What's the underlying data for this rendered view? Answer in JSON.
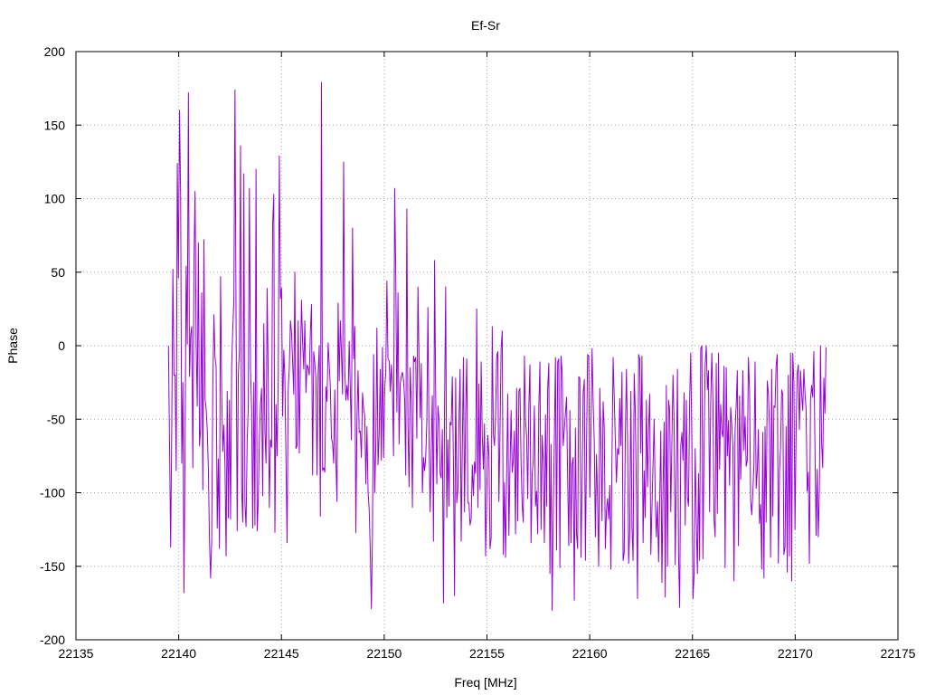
{
  "chart_data": {
    "type": "line",
    "title": "Ef-Sr",
    "xlabel": "Freq [MHz]",
    "ylabel": "Phase",
    "xlim": [
      22135,
      22175
    ],
    "ylim": [
      -200,
      200
    ],
    "x_ticks": [
      22135,
      22140,
      22145,
      22150,
      22155,
      22160,
      22165,
      22170,
      22175
    ],
    "y_ticks": [
      -200,
      -150,
      -100,
      -50,
      0,
      50,
      100,
      150,
      200
    ],
    "grid": true,
    "legend": "none",
    "series": [
      {
        "color": "#9400d3",
        "x_start": 22139.5,
        "x_end": 22171.5,
        "y": [
          0,
          -68,
          -137,
          -55,
          52,
          -20,
          -20,
          -85,
          124,
          46,
          160,
          102,
          -80,
          -25,
          -168,
          -66,
          54,
          1,
          172,
          -21,
          7,
          13,
          -83,
          55,
          105,
          1,
          -41,
          70,
          -68,
          -57,
          36,
          -98,
          72,
          -36,
          -43,
          -57,
          -84,
          -132,
          -158,
          -133,
          -30,
          21,
          -8,
          -14,
          -124,
          -77,
          -138,
          47,
          -31,
          -72,
          -54,
          -82,
          -143,
          -31,
          -117,
          -37,
          -118,
          -14,
          11,
          31,
          174,
          16,
          -126,
          -20,
          -3,
          136,
          -97,
          -120,
          117,
          -108,
          -123,
          -65,
          -42,
          107,
          -16,
          -43,
          -124,
          -25,
          -122,
          120,
          -126,
          -106,
          -64,
          -40,
          -29,
          -102,
          15,
          -58,
          -80,
          39,
          -23,
          -110,
          -64,
          -69,
          83,
          103,
          -127,
          -40,
          -75,
          -25,
          129,
          32,
          39,
          -48,
          -3,
          -21,
          -77,
          -134,
          -30,
          -15,
          17,
          9,
          -11,
          -33,
          50,
          -70,
          -68,
          17,
          -73,
          -12,
          31,
          2,
          -16,
          17,
          -32,
          -13,
          -15,
          -20,
          9,
          28,
          -88,
          -4,
          -12,
          -22,
          -88,
          -19,
          0,
          -116,
          179,
          -85,
          -83,
          -86,
          -28,
          -38,
          2,
          -13,
          -28,
          -63,
          -66,
          -80,
          -30,
          -78,
          -106,
          29,
          -24,
          17,
          -5,
          -33,
          125,
          -16,
          -37,
          -27,
          -37,
          3,
          -30,
          -64,
          80,
          -9,
          13,
          -127,
          -51,
          -17,
          -59,
          -58,
          -76,
          -32,
          -43,
          -47,
          -94,
          -55,
          -99,
          -111,
          -139,
          -179,
          -128,
          -6,
          -100,
          -68,
          12,
          -81,
          -61,
          -16,
          -78,
          -1,
          -76,
          -30,
          -18,
          44,
          -9,
          -10,
          -31,
          -13,
          -30,
          -75,
          107,
          50,
          -45,
          36,
          -67,
          -26,
          -21,
          -18,
          -24,
          -36,
          -88,
          93,
          -54,
          -96,
          -15,
          -40,
          -110,
          -7,
          -11,
          -8,
          -63,
          40,
          -10,
          -49,
          -12,
          -100,
          -76,
          -85,
          -76,
          -52,
          26,
          -64,
          -113,
          -69,
          -34,
          -133,
          58,
          -32,
          -94,
          -41,
          -50,
          -87,
          -90,
          -57,
          -175,
          -41,
          40,
          -117,
          -64,
          -109,
          -52,
          -54,
          -21,
          -80,
          -170,
          -22,
          -107,
          -98,
          -52,
          -16,
          -133,
          -70,
          -8,
          -113,
          -45,
          -9,
          -107,
          -107,
          -122,
          -118,
          -81,
          -102,
          -79,
          -87,
          25,
          -110,
          -26,
          -98,
          -11,
          -61,
          -84,
          -53,
          -143,
          -102,
          -61,
          -75,
          -138,
          -131,
          13,
          -60,
          -68,
          -48,
          -7,
          -4,
          -106,
          -59,
          -2,
          10,
          -142,
          -93,
          -144,
          -86,
          -33,
          -129,
          -83,
          -44,
          -86,
          -78,
          -58,
          -128,
          -29,
          -119,
          -31,
          -29,
          -80,
          -109,
          -120,
          -7,
          -50,
          -62,
          -104,
          -41,
          -13,
          -134,
          -87,
          -78,
          -41,
          -109,
          -99,
          -128,
          -42,
          -11,
          -125,
          -61,
          -79,
          -134,
          -47,
          -109,
          -29,
          -12,
          -155,
          -67,
          -180,
          -112,
          -64,
          -8,
          -139,
          -11,
          -9,
          -151,
          -7,
          -18,
          -68,
          -57,
          -46,
          -35,
          -91,
          -136,
          -44,
          -134,
          -81,
          -76,
          -173,
          -56,
          -128,
          -138,
          -21,
          -22,
          -144,
          -95,
          -32,
          -23,
          -146,
          -69,
          -6,
          -7,
          -103,
          -58,
          -2,
          -39,
          -65,
          -130,
          -74,
          -106,
          -150,
          -29,
          -68,
          -119,
          -38,
          -56,
          -138,
          -112,
          -104,
          -118,
          -95,
          -152,
          -74,
          -8,
          -35,
          -65,
          -93,
          -70,
          -74,
          -36,
          -68,
          -18,
          -146,
          -141,
          -62,
          -16,
          -63,
          -148,
          -125,
          -31,
          -123,
          -146,
          -19,
          -45,
          -99,
          -172,
          -6,
          -9,
          -73,
          -7,
          -134,
          -85,
          -117,
          -37,
          -96,
          -56,
          -33,
          -142,
          -111,
          -80,
          -50,
          -106,
          -130,
          -106,
          -147,
          -106,
          -58,
          -161,
          -97,
          -52,
          -171,
          -27,
          -150,
          -37,
          -44,
          -113,
          -64,
          -20,
          -52,
          -149,
          -86,
          -16,
          -142,
          -178,
          -68,
          -59,
          -78,
          -32,
          -122,
          -37,
          -103,
          -109,
          -37,
          -5,
          -66,
          -172,
          -156,
          -70,
          -118,
          -155,
          -87,
          -146,
          -2,
          0,
          -145,
          -66,
          -13,
          0,
          -30,
          -17,
          -113,
          -38,
          -5,
          -38,
          -118,
          -130,
          -12,
          -114,
          -5,
          -84,
          -40,
          -58,
          -62,
          -14,
          -151,
          -15,
          -75,
          -51,
          -95,
          -42,
          -54,
          -68,
          -160,
          -57,
          -40,
          -17,
          -136,
          -34,
          -91,
          -63,
          -17,
          -71,
          -48,
          -82,
          -78,
          -8,
          -30,
          -105,
          -115,
          -100,
          -80,
          -11,
          -97,
          -85,
          -57,
          -121,
          -108,
          -152,
          -59,
          -158,
          -55,
          -120,
          -24,
          -32,
          -55,
          -144,
          -16,
          -116,
          -41,
          -42,
          -13,
          -6,
          -148,
          -86,
          -69,
          -30,
          -33,
          -142,
          -137,
          -55,
          -154,
          -20,
          -143,
          -5,
          -160,
          -5,
          -25,
          -125,
          -59,
          -19,
          -13,
          -57,
          -17,
          -33,
          -44,
          -16,
          -32,
          -43,
          -99,
          -86,
          -148,
          -37,
          -27,
          -35,
          -4,
          -68,
          -129,
          -84,
          -130,
          -97,
          0,
          -66,
          -83,
          -22,
          -46,
          -1
        ]
      }
    ]
  }
}
